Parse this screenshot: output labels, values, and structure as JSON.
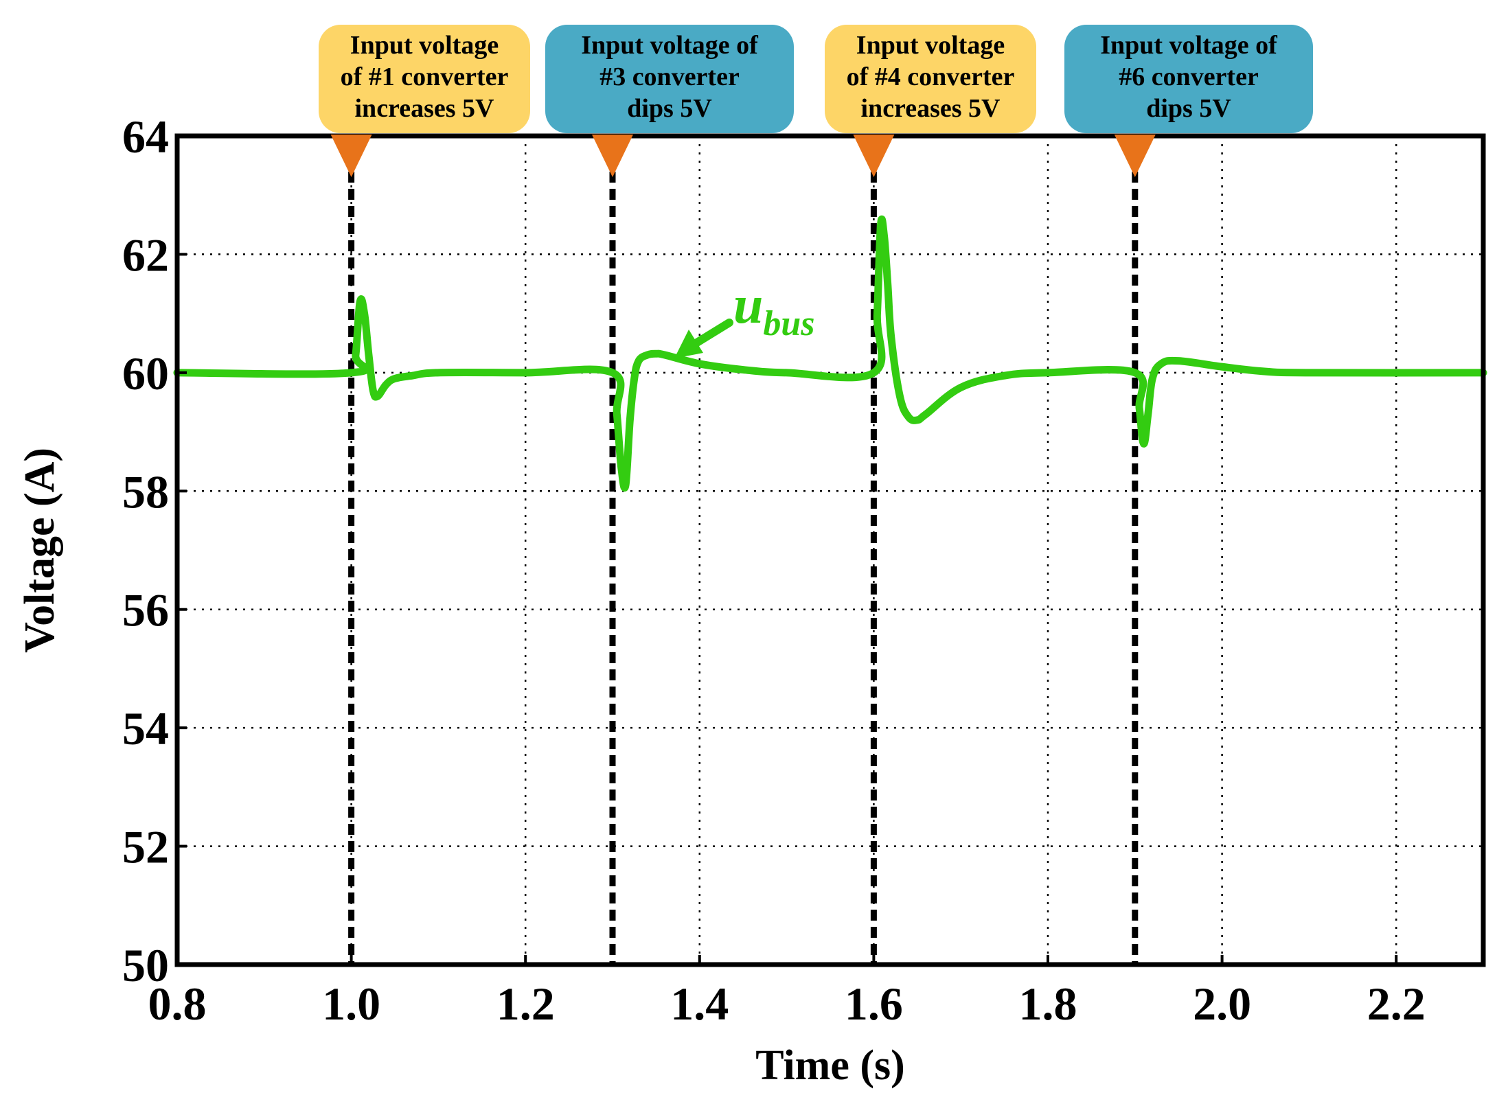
{
  "chart_data": {
    "type": "line",
    "title": "",
    "xlabel": "Time (s)",
    "ylabel": "Voltage (A)",
    "xlim": [
      0.8,
      2.3
    ],
    "ylim": [
      50,
      64
    ],
    "xticks": [
      0.8,
      1.0,
      1.2,
      1.4,
      1.6,
      1.8,
      2.0,
      2.2
    ],
    "xtick_labels": [
      "0.8",
      "1.0",
      "1.2",
      "1.4",
      "1.6",
      "1.8",
      "2.0",
      "2.2"
    ],
    "yticks": [
      50,
      52,
      54,
      56,
      58,
      60,
      62,
      64
    ],
    "ytick_labels": [
      "50",
      "52",
      "54",
      "56",
      "58",
      "60",
      "62",
      "64"
    ],
    "grid": true,
    "series": [
      {
        "name": "u_bus",
        "label_main": "u",
        "label_sub": "bus",
        "color": "#33cc11",
        "x": [
          0.8,
          1.0,
          1.005,
          1.01,
          1.015,
          1.02,
          1.025,
          1.03,
          1.04,
          1.05,
          1.07,
          1.1,
          1.2,
          1.3,
          1.305,
          1.31,
          1.315,
          1.32,
          1.325,
          1.33,
          1.34,
          1.35,
          1.36,
          1.4,
          1.45,
          1.5,
          1.6,
          1.604,
          1.608,
          1.612,
          1.616,
          1.62,
          1.63,
          1.64,
          1.65,
          1.66,
          1.7,
          1.75,
          1.8,
          1.9,
          1.905,
          1.91,
          1.915,
          1.92,
          1.93,
          1.95,
          2.0,
          2.05,
          2.1,
          2.3
        ],
        "values": [
          60.0,
          60.0,
          60.3,
          61.2,
          61.0,
          60.3,
          59.7,
          59.6,
          59.8,
          59.9,
          59.95,
          60.0,
          60.0,
          60.0,
          59.3,
          58.4,
          58.1,
          59.2,
          59.9,
          60.2,
          60.3,
          60.32,
          60.3,
          60.15,
          60.05,
          60.0,
          60.0,
          61.0,
          62.5,
          62.3,
          61.5,
          60.6,
          59.6,
          59.25,
          59.2,
          59.3,
          59.75,
          59.95,
          60.0,
          60.0,
          59.4,
          58.8,
          59.3,
          59.9,
          60.15,
          60.2,
          60.1,
          60.02,
          60.0,
          60.0
        ]
      }
    ],
    "events": [
      {
        "x": 1.0,
        "lines": [
          "Input voltage",
          "of #1 converter",
          "increases 5V"
        ],
        "box_color": "#fdd567"
      },
      {
        "x": 1.3,
        "lines": [
          "Input voltage of",
          "#3 converter",
          "dips 5V"
        ],
        "box_color": "#4aaac5"
      },
      {
        "x": 1.6,
        "lines": [
          "Input voltage",
          "of #4 converter",
          "increases 5V"
        ],
        "box_color": "#fdd567"
      },
      {
        "x": 1.9,
        "lines": [
          "Input voltage of",
          "#6 converter",
          "dips 5V"
        ],
        "box_color": "#4aaac5"
      }
    ],
    "marker_color": "#e8731a"
  }
}
